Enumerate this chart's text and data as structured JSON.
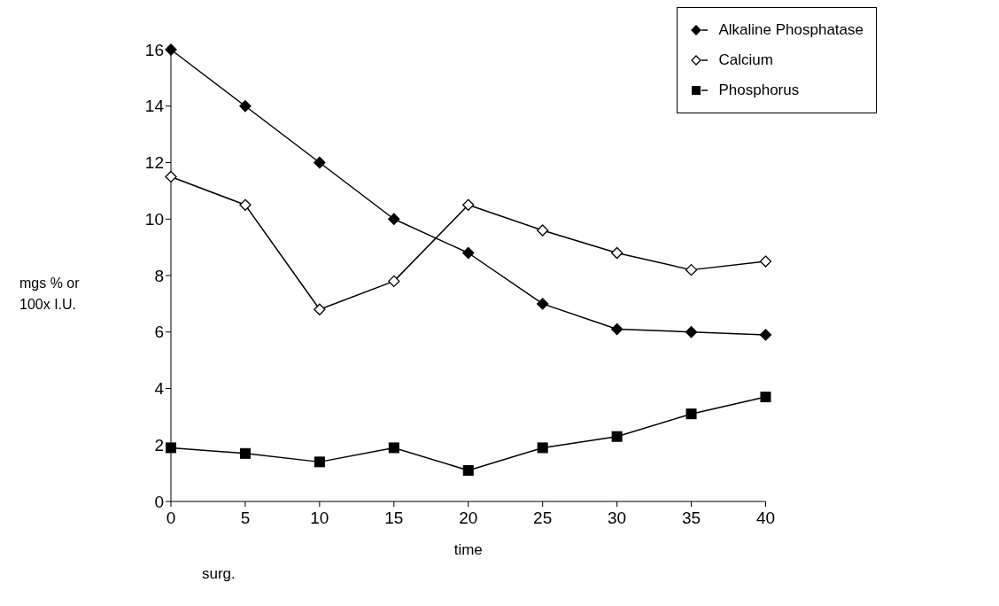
{
  "chart_data": {
    "type": "line",
    "xlabel": "time",
    "ylabel": "mgs % or 100x I.U.",
    "x": [
      0,
      5,
      10,
      15,
      20,
      25,
      30,
      35,
      40
    ],
    "series": [
      {
        "name": "Alkaline Phosphatase",
        "color": "#000000",
        "marker": "diamond",
        "values": [
          16,
          14,
          12,
          10,
          8.8,
          7,
          6.1,
          6,
          5.9
        ]
      },
      {
        "name": "Calcium",
        "color": "#000000",
        "marker": "diamond",
        "values": [
          11.5,
          10.5,
          6.8,
          7.8,
          10.5,
          9.6,
          8.8,
          8.2,
          8.5
        ]
      },
      {
        "name": "Phosphorus",
        "color": "#000000",
        "marker": "square",
        "values": [
          1.9,
          1.7,
          1.4,
          1.9,
          1.1,
          1.9,
          2.3,
          3.1,
          3.7
        ]
      }
    ],
    "xlim": [
      0,
      40
    ],
    "xticks": [
      0,
      5,
      10,
      15,
      20,
      25,
      30,
      35,
      40
    ],
    "ylim": [
      0,
      16
    ],
    "yticks": [
      0,
      2,
      4,
      6,
      8,
      10,
      12,
      14,
      16
    ],
    "grid": false,
    "legend": "top right",
    "line_style": "solid",
    "annotations": [
      "surg."
    ]
  }
}
